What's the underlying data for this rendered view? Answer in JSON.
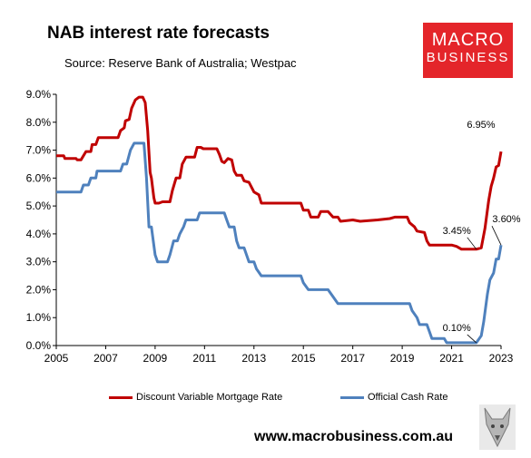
{
  "header": {
    "title": "NAB interest rate forecasts",
    "source": "Source: Reserve Bank of Australia; Westpac"
  },
  "logo": {
    "line1": "MACRO",
    "line2": "BUSINESS",
    "bg_color": "#e4252a"
  },
  "footer": {
    "website": "www.macrobusiness.com.au"
  },
  "chart_data": {
    "type": "line",
    "title": "NAB interest rate forecasts",
    "xlim": [
      2005,
      2023
    ],
    "ylim": [
      0,
      9
    ],
    "x_ticks": [
      "2005",
      "2007",
      "2009",
      "2011",
      "2013",
      "2015",
      "2017",
      "2019",
      "2021",
      "2023"
    ],
    "y_ticks": [
      "0.0%",
      "1.0%",
      "2.0%",
      "3.0%",
      "4.0%",
      "5.0%",
      "6.0%",
      "7.0%",
      "8.0%",
      "9.0%"
    ],
    "legend_position": "bottom",
    "series": [
      {
        "name": "Discount Variable Mortgage Rate",
        "color": "#c00000",
        "points": [
          [
            2005.0,
            6.8
          ],
          [
            2005.3,
            6.8
          ],
          [
            2005.35,
            6.7
          ],
          [
            2005.8,
            6.7
          ],
          [
            2005.85,
            6.65
          ],
          [
            2006.0,
            6.65
          ],
          [
            2006.2,
            6.95
          ],
          [
            2006.4,
            6.95
          ],
          [
            2006.45,
            7.2
          ],
          [
            2006.6,
            7.2
          ],
          [
            2006.7,
            7.45
          ],
          [
            2007.5,
            7.45
          ],
          [
            2007.6,
            7.7
          ],
          [
            2007.75,
            7.8
          ],
          [
            2007.8,
            8.05
          ],
          [
            2007.95,
            8.1
          ],
          [
            2008.05,
            8.5
          ],
          [
            2008.2,
            8.8
          ],
          [
            2008.35,
            8.9
          ],
          [
            2008.5,
            8.9
          ],
          [
            2008.6,
            8.7
          ],
          [
            2008.7,
            7.7
          ],
          [
            2008.8,
            6.2
          ],
          [
            2008.85,
            6.0
          ],
          [
            2008.95,
            5.3
          ],
          [
            2009.0,
            5.1
          ],
          [
            2009.15,
            5.1
          ],
          [
            2009.3,
            5.15
          ],
          [
            2009.6,
            5.15
          ],
          [
            2009.7,
            5.55
          ],
          [
            2009.85,
            6.0
          ],
          [
            2010.0,
            6.0
          ],
          [
            2010.1,
            6.5
          ],
          [
            2010.25,
            6.75
          ],
          [
            2010.6,
            6.75
          ],
          [
            2010.7,
            7.1
          ],
          [
            2010.85,
            7.1
          ],
          [
            2010.95,
            7.05
          ],
          [
            2011.5,
            7.05
          ],
          [
            2011.6,
            6.85
          ],
          [
            2011.7,
            6.6
          ],
          [
            2011.8,
            6.55
          ],
          [
            2011.95,
            6.7
          ],
          [
            2012.1,
            6.65
          ],
          [
            2012.2,
            6.25
          ],
          [
            2012.3,
            6.1
          ],
          [
            2012.5,
            6.1
          ],
          [
            2012.6,
            5.9
          ],
          [
            2012.8,
            5.85
          ],
          [
            2013.0,
            5.5
          ],
          [
            2013.2,
            5.4
          ],
          [
            2013.3,
            5.1
          ],
          [
            2014.9,
            5.1
          ],
          [
            2015.0,
            4.85
          ],
          [
            2015.2,
            4.85
          ],
          [
            2015.3,
            4.6
          ],
          [
            2015.6,
            4.6
          ],
          [
            2015.7,
            4.8
          ],
          [
            2016.0,
            4.8
          ],
          [
            2016.2,
            4.6
          ],
          [
            2016.4,
            4.6
          ],
          [
            2016.5,
            4.45
          ],
          [
            2017.0,
            4.5
          ],
          [
            2017.3,
            4.45
          ],
          [
            2018.0,
            4.5
          ],
          [
            2018.5,
            4.55
          ],
          [
            2018.7,
            4.6
          ],
          [
            2019.2,
            4.6
          ],
          [
            2019.3,
            4.4
          ],
          [
            2019.5,
            4.25
          ],
          [
            2019.6,
            4.1
          ],
          [
            2019.9,
            4.05
          ],
          [
            2020.0,
            3.75
          ],
          [
            2020.1,
            3.6
          ],
          [
            2021.0,
            3.6
          ],
          [
            2021.2,
            3.55
          ],
          [
            2021.4,
            3.45
          ],
          [
            2022.0,
            3.45
          ],
          [
            2022.2,
            3.5
          ],
          [
            2022.35,
            4.2
          ],
          [
            2022.5,
            5.2
          ],
          [
            2022.6,
            5.7
          ],
          [
            2022.7,
            6.0
          ],
          [
            2022.8,
            6.4
          ],
          [
            2022.9,
            6.45
          ],
          [
            2023.0,
            6.95
          ]
        ],
        "labels": [
          {
            "x": 2022.0,
            "y": 3.45,
            "text": "3.45%"
          },
          {
            "x": 2023.0,
            "y": 6.95,
            "text": "6.95%"
          }
        ]
      },
      {
        "name": "Official Cash Rate",
        "color": "#4f81bd",
        "points": [
          [
            2005.0,
            5.5
          ],
          [
            2006.0,
            5.5
          ],
          [
            2006.1,
            5.75
          ],
          [
            2006.3,
            5.75
          ],
          [
            2006.4,
            6.0
          ],
          [
            2006.6,
            6.0
          ],
          [
            2006.65,
            6.25
          ],
          [
            2007.6,
            6.25
          ],
          [
            2007.7,
            6.5
          ],
          [
            2007.85,
            6.5
          ],
          [
            2008.0,
            7.0
          ],
          [
            2008.15,
            7.25
          ],
          [
            2008.55,
            7.25
          ],
          [
            2008.65,
            6.0
          ],
          [
            2008.75,
            4.25
          ],
          [
            2008.85,
            4.25
          ],
          [
            2009.0,
            3.25
          ],
          [
            2009.1,
            3.0
          ],
          [
            2009.5,
            3.0
          ],
          [
            2009.6,
            3.25
          ],
          [
            2009.75,
            3.75
          ],
          [
            2009.9,
            3.75
          ],
          [
            2010.0,
            4.0
          ],
          [
            2010.15,
            4.25
          ],
          [
            2010.25,
            4.5
          ],
          [
            2010.7,
            4.5
          ],
          [
            2010.8,
            4.75
          ],
          [
            2011.8,
            4.75
          ],
          [
            2011.9,
            4.5
          ],
          [
            2012.0,
            4.25
          ],
          [
            2012.2,
            4.25
          ],
          [
            2012.3,
            3.75
          ],
          [
            2012.4,
            3.5
          ],
          [
            2012.6,
            3.5
          ],
          [
            2012.7,
            3.25
          ],
          [
            2012.8,
            3.0
          ],
          [
            2013.0,
            3.0
          ],
          [
            2013.1,
            2.75
          ],
          [
            2013.3,
            2.5
          ],
          [
            2014.9,
            2.5
          ],
          [
            2015.0,
            2.25
          ],
          [
            2015.2,
            2.0
          ],
          [
            2016.0,
            2.0
          ],
          [
            2016.2,
            1.75
          ],
          [
            2016.4,
            1.5
          ],
          [
            2019.3,
            1.5
          ],
          [
            2019.4,
            1.25
          ],
          [
            2019.6,
            1.0
          ],
          [
            2019.7,
            0.75
          ],
          [
            2020.0,
            0.75
          ],
          [
            2020.1,
            0.5
          ],
          [
            2020.2,
            0.25
          ],
          [
            2020.7,
            0.25
          ],
          [
            2020.8,
            0.1
          ],
          [
            2022.0,
            0.1
          ],
          [
            2022.2,
            0.35
          ],
          [
            2022.3,
            0.85
          ],
          [
            2022.45,
            1.85
          ],
          [
            2022.55,
            2.35
          ],
          [
            2022.7,
            2.6
          ],
          [
            2022.8,
            3.1
          ],
          [
            2022.9,
            3.1
          ],
          [
            2023.0,
            3.6
          ]
        ],
        "labels": [
          {
            "x": 2022.0,
            "y": 0.1,
            "text": "0.10%"
          },
          {
            "x": 2023.0,
            "y": 3.6,
            "text": "3.60%"
          }
        ]
      }
    ]
  }
}
